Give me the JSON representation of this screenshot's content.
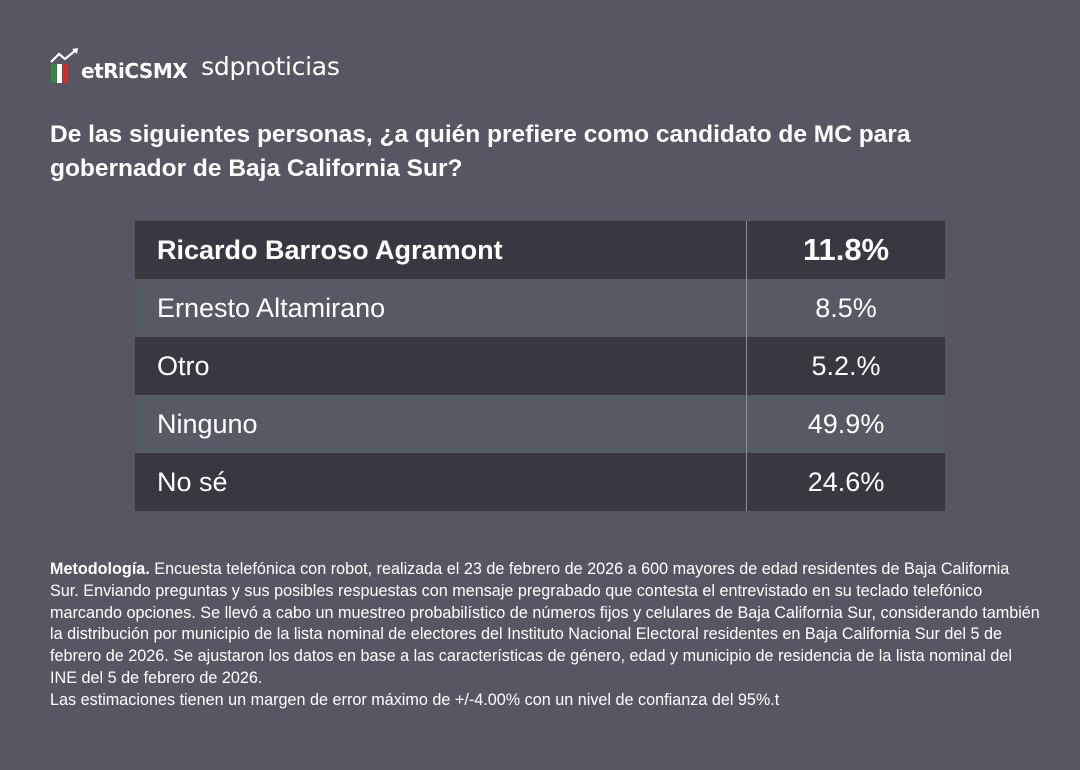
{
  "brand": {
    "metrics_logo_text": "etRiCSMX",
    "sdp_text": "sdpnoticias",
    "colors": {
      "green": "#2e8b3c",
      "red": "#d62a2a",
      "white": "#ffffff"
    }
  },
  "question": "De las siguientes personas, ¿a quién prefiere como candidato de MC para gobernador de Baja California Sur?",
  "chart_data": {
    "type": "table",
    "title": "De las siguientes personas, ¿a quién prefiere como candidato de MC para gobernador de Baja California Sur?",
    "rows": [
      {
        "name": "Ricardo Barroso Agramont",
        "value": "11.8%"
      },
      {
        "name": "Ernesto Altamirano",
        "value": "8.5%"
      },
      {
        "name": "Otro",
        "value": "5.2.%"
      },
      {
        "name": "Ninguno",
        "value": "49.9%"
      },
      {
        "name": "No sé",
        "value": "24.6%"
      }
    ],
    "values": [
      11.8,
      8.5,
      5.2,
      49.9,
      24.6
    ]
  },
  "methodology": {
    "label": "Metodología.",
    "text": " Encuesta telefónica con robot, realizada el 23 de febrero de 2026 a 600 mayores de edad residentes de Baja California Sur. Enviando preguntas y sus posibles respuestas con mensaje pregrabado que contesta el entrevistado en su teclado telefónico marcando opciones. Se llevó a cabo un muestreo probabilístico de números fijos y celulares de Baja California Sur, considerando también la distribución por municipio de la lista nominal de electores del Instituto Nacional Electoral residentes en Baja California Sur del 5 de febrero de 2026. Se ajustaron los datos en base a las características de género, edad y municipio de residencia de la lista nominal del INE del 5 de febrero de 2026.",
    "margin": "Las estimaciones tienen un margen de error máximo de +/-4.00% con un nivel de confianza del 95%.t"
  }
}
